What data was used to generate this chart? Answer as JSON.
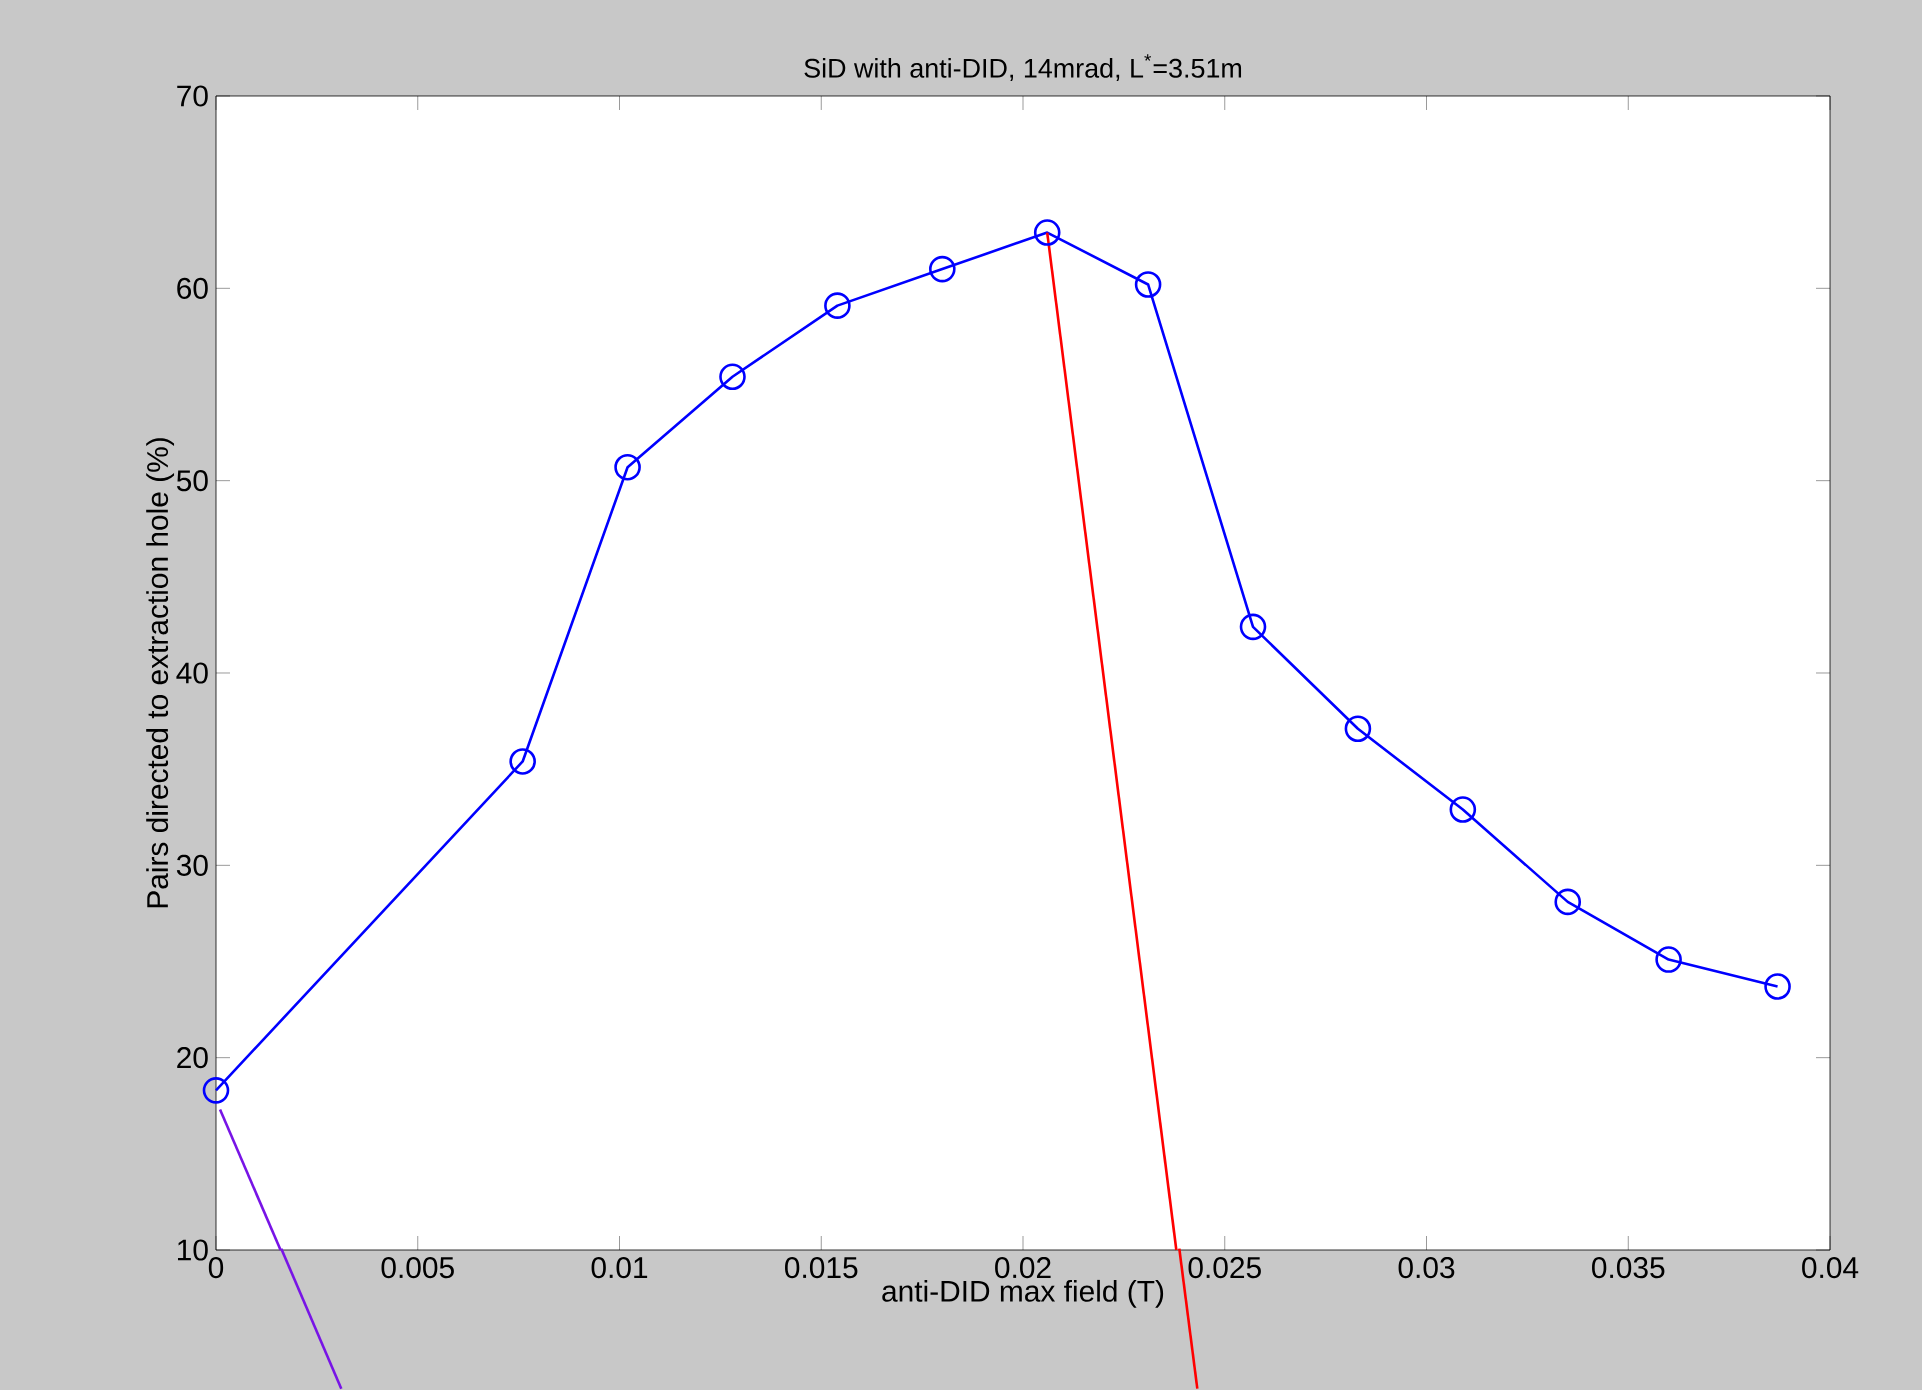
{
  "chart_data": {
    "type": "line",
    "title": "SiD with anti-DID, 14mrad, L$^{*}$=3.51m",
    "xlabel": "anti-DID max field (T)",
    "ylabel": "Pairs directed to extraction hole (%)",
    "x": [
      0,
      0.0076,
      0.0102,
      0.0128,
      0.0154,
      0.018,
      0.0206,
      0.0231,
      0.0257,
      0.0283,
      0.0309,
      0.0335,
      0.036,
      0.0387
    ],
    "series": [
      {
        "color": "#0000ff",
        "values": [
          18.3,
          35.4,
          50.7,
          55.4,
          59.1,
          61.0,
          62.9,
          60.2,
          42.4,
          37.1,
          32.9,
          28.1,
          25.1,
          23.7
        ]
      },
      {
        "color": "#ff0000",
        "marker": "none",
        "x": [
          0.0206,
          0.0238
        ],
        "values": [
          62.9,
          10
        ]
      },
      {
        "color": "#7814e6",
        "marker": "none",
        "x": [
          0.0001,
          0.0016
        ],
        "values": [
          17.3,
          10
        ]
      }
    ],
    "xlim": [
      0,
      0.04
    ],
    "ylim": [
      10,
      70
    ],
    "xticks": [
      0,
      0.005,
      0.01,
      0.015,
      0.02,
      0.025,
      0.03,
      0.035,
      0.04
    ],
    "yticks": [
      10,
      20,
      30,
      40,
      50,
      60,
      70
    ],
    "marker": "circle",
    "line_style": "solid",
    "grid": false
  }
}
